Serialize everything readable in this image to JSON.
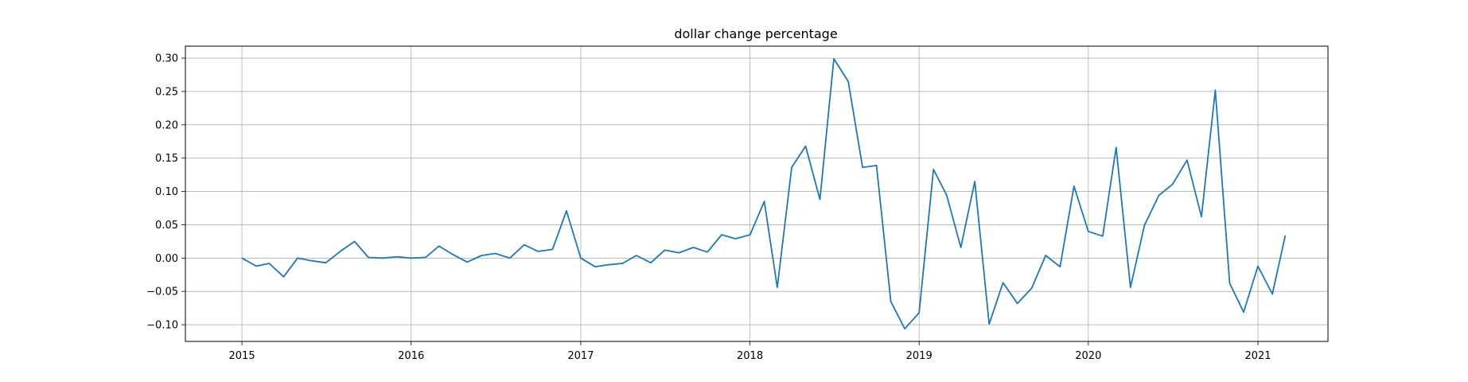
{
  "chart_data": {
    "type": "line",
    "title": "dollar change percentage",
    "xlabel": "",
    "ylabel": "",
    "grid": true,
    "xlim": [
      "2014-09-01",
      "2021-06-01"
    ],
    "ylim": [
      -0.125,
      0.318
    ],
    "x_ticks": [
      "2015",
      "2016",
      "2017",
      "2018",
      "2019",
      "2020",
      "2021"
    ],
    "y_ticks": [
      "−0.10",
      "−0.05",
      "0.00",
      "0.05",
      "0.10",
      "0.15",
      "0.20",
      "0.25",
      "0.30"
    ],
    "series": [
      {
        "color": "#1f77b4",
        "x": [
          "2015-01",
          "2015-02",
          "2015-03",
          "2015-04",
          "2015-05",
          "2015-06",
          "2015-07",
          "2015-08",
          "2015-09",
          "2015-10",
          "2015-11",
          "2015-12",
          "2016-01",
          "2016-02",
          "2016-03",
          "2016-04",
          "2016-05",
          "2016-06",
          "2016-07",
          "2016-08",
          "2016-09",
          "2016-10",
          "2016-11",
          "2016-12",
          "2017-01",
          "2017-02",
          "2017-03",
          "2017-04",
          "2017-05",
          "2017-06",
          "2017-07",
          "2017-08",
          "2017-09",
          "2017-10",
          "2017-11",
          "2017-12",
          "2018-01",
          "2018-02",
          "2018-03",
          "2018-04",
          "2018-05",
          "2018-06",
          "2018-07",
          "2018-08",
          "2018-09",
          "2018-10",
          "2018-11",
          "2018-12",
          "2019-01",
          "2019-02",
          "2019-03",
          "2019-04",
          "2019-05",
          "2019-06",
          "2019-07",
          "2019-08",
          "2019-09",
          "2019-10",
          "2019-11",
          "2019-12",
          "2020-01",
          "2020-02",
          "2020-03",
          "2020-04",
          "2020-05",
          "2020-06",
          "2020-07",
          "2020-08",
          "2020-09",
          "2020-10",
          "2020-11",
          "2020-12",
          "2021-01",
          "2021-02",
          "2021-03"
        ],
        "y": [
          0.0,
          -0.012,
          -0.008,
          -0.028,
          0.0,
          -0.004,
          -0.007,
          0.01,
          0.025,
          0.001,
          0.0,
          0.002,
          0.0,
          0.001,
          0.018,
          0.005,
          -0.006,
          0.004,
          0.007,
          0.0,
          0.02,
          0.01,
          0.013,
          0.071,
          0.0,
          -0.013,
          -0.01,
          -0.008,
          0.004,
          -0.007,
          0.012,
          0.008,
          0.016,
          0.009,
          0.035,
          0.029,
          0.035,
          0.085,
          -0.044,
          0.136,
          0.168,
          0.088,
          0.299,
          0.265,
          0.136,
          0.139,
          -0.065,
          -0.106,
          -0.082,
          0.133,
          0.095,
          0.016,
          0.115,
          -0.099,
          -0.037,
          -0.068,
          -0.045,
          0.004,
          -0.013,
          0.108,
          0.04,
          0.033,
          0.166,
          -0.044,
          0.049,
          0.094,
          0.111,
          0.147,
          0.062,
          0.252,
          -0.038,
          -0.081,
          -0.012,
          -0.054,
          0.034
        ]
      }
    ]
  }
}
